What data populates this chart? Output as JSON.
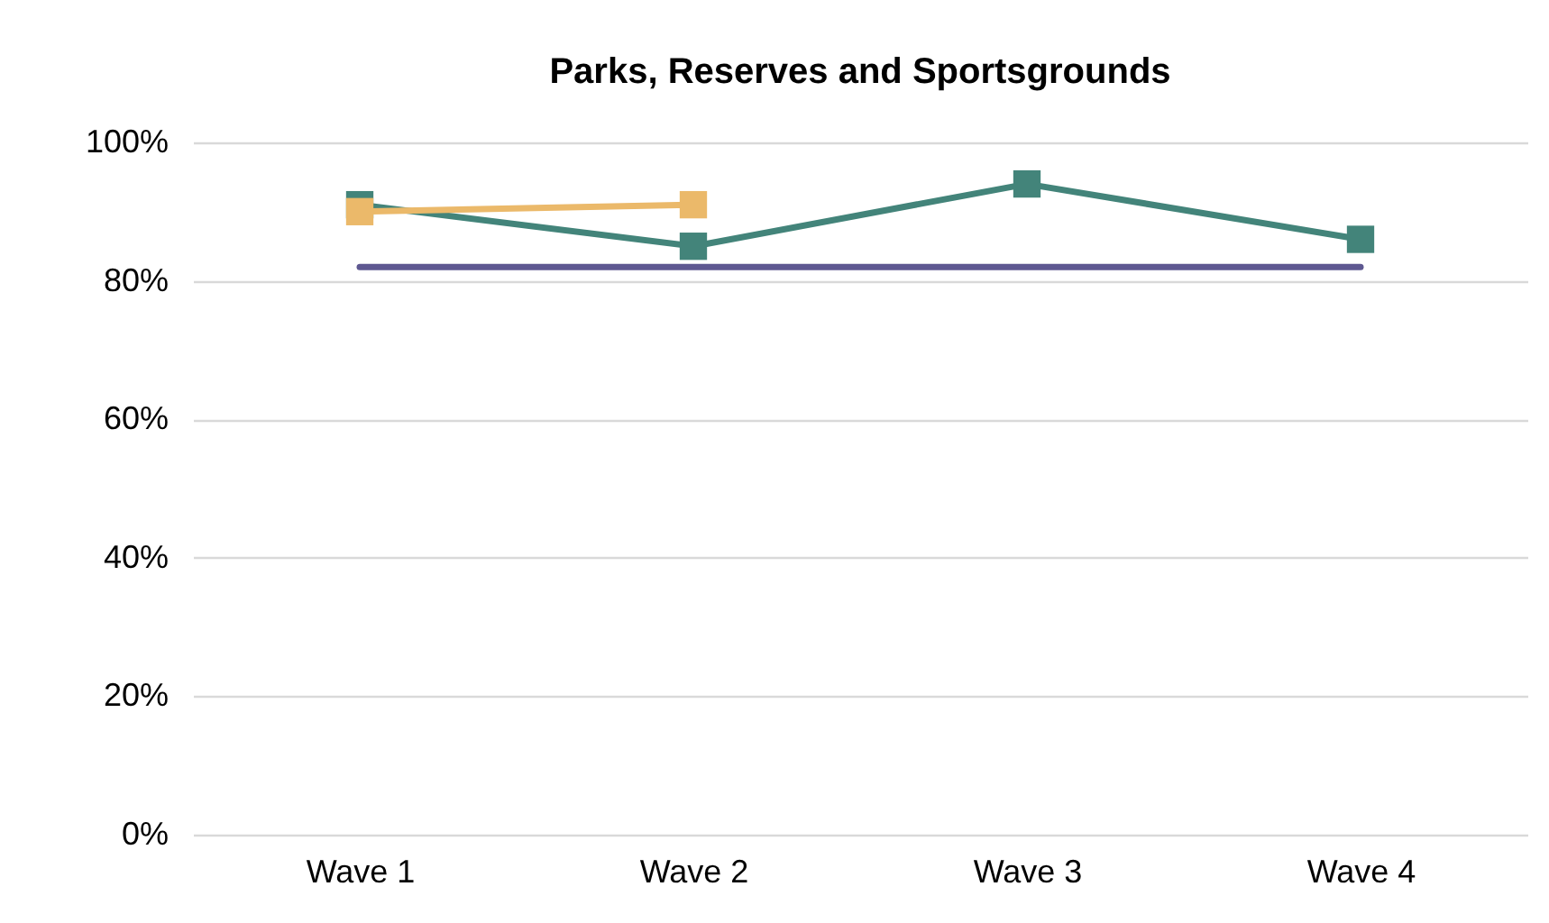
{
  "chart_data": {
    "type": "line",
    "title": "Parks, Reserves and Sportsgrounds",
    "categories": [
      "Wave 1",
      "Wave 2",
      "Wave 3",
      "Wave 4"
    ],
    "series": [
      {
        "color": "#43847a",
        "values": [
          91,
          85,
          94,
          86
        ]
      },
      {
        "color": "#5e5891",
        "values": [
          82,
          82,
          82,
          82
        ],
        "marker": "none"
      },
      {
        "color": "#ebb96a",
        "values": [
          90,
          91,
          null,
          null
        ]
      }
    ],
    "ylim": [
      0,
      100
    ],
    "yticks": [
      {
        "value": 0,
        "label": "0%"
      },
      {
        "value": 20,
        "label": "20%"
      },
      {
        "value": 40,
        "label": "40%"
      },
      {
        "value": 60,
        "label": "60%"
      },
      {
        "value": 80,
        "label": "80%"
      },
      {
        "value": 100,
        "label": "100%"
      }
    ],
    "grid": "y",
    "marker": "square",
    "line_style": "solid"
  }
}
